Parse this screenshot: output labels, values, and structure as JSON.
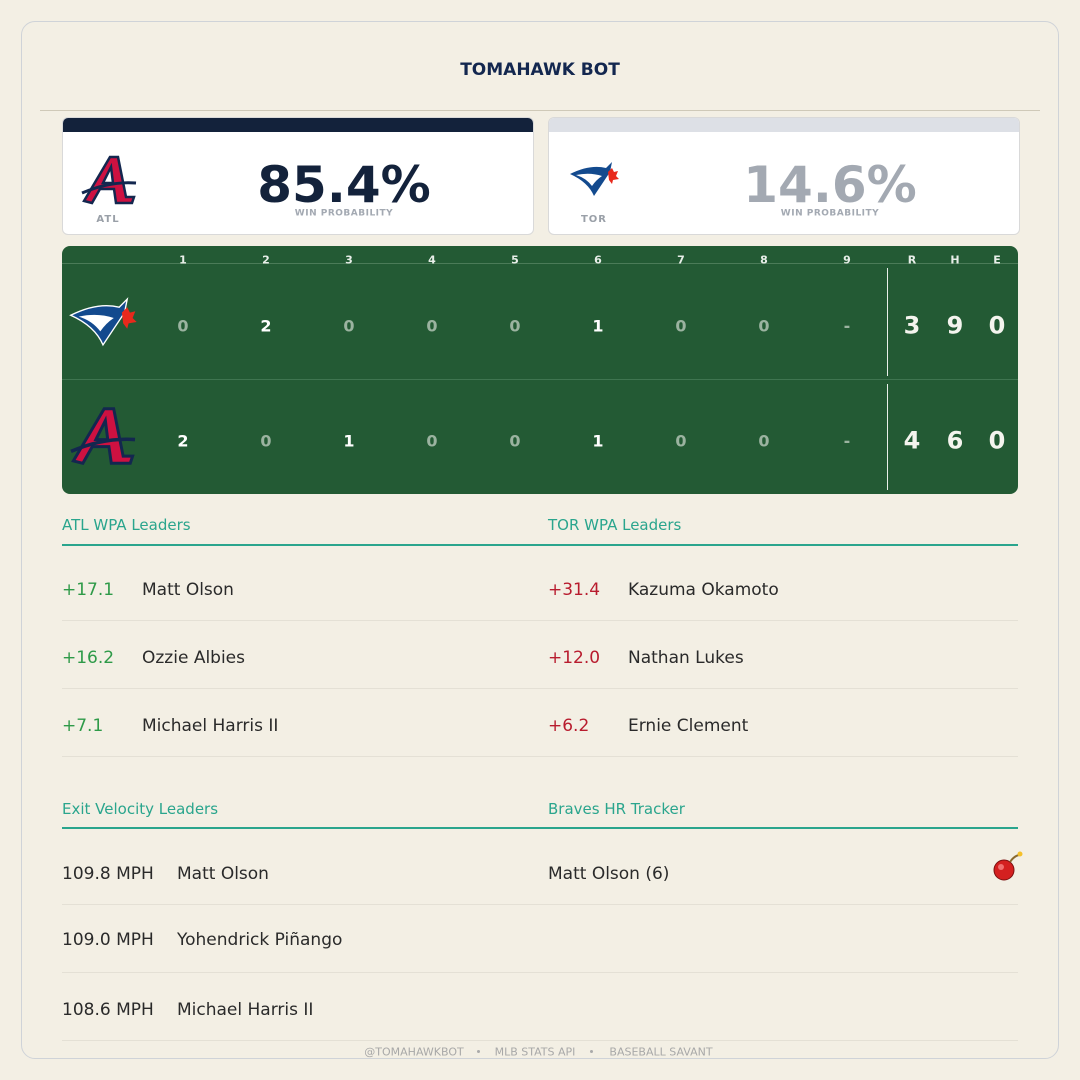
{
  "header": {
    "title": "TOMAHAWK BOT"
  },
  "win_probability": [
    {
      "team": "ATL",
      "value": "85.4%",
      "label": "WIN PROBABILITY"
    },
    {
      "team": "TOR",
      "value": "14.6%",
      "label": "WIN PROBABILITY"
    }
  ],
  "linescore": {
    "innings": [
      1,
      2,
      3,
      4,
      5,
      6,
      7,
      8,
      9
    ],
    "totals_header": [
      "R",
      "H",
      "E"
    ],
    "rows": [
      {
        "innings": [
          0,
          2,
          0,
          0,
          0,
          1,
          0,
          0,
          "-"
        ],
        "totals": [
          3,
          9,
          0
        ]
      },
      {
        "innings": [
          2,
          0,
          1,
          0,
          0,
          1,
          0,
          0,
          "-"
        ],
        "totals": [
          4,
          6,
          0
        ]
      }
    ]
  },
  "sections": [
    {
      "title": "ATL WPA Leaders",
      "rows": [
        {
          "value": "+17.1",
          "name": "Matt Olson"
        },
        {
          "value": "+16.2",
          "name": "Ozzie Albies"
        },
        {
          "value": "+7.1",
          "name": "Michael Harris II"
        }
      ]
    },
    {
      "title": "TOR WPA Leaders",
      "rows": [
        {
          "value": "+31.4",
          "name": "Kazuma Okamoto"
        },
        {
          "value": "+12.0",
          "name": "Nathan Lukes"
        },
        {
          "value": "+6.2",
          "name": "Ernie Clement"
        }
      ]
    },
    {
      "title": "Exit Velocity Leaders",
      "rows": [
        {
          "value": "109.8 MPH",
          "name": "Matt Olson"
        },
        {
          "value": "109.0 MPH",
          "name": "Yohendrick Piñango"
        },
        {
          "value": "108.6 MPH",
          "name": "Michael Harris II"
        }
      ]
    },
    {
      "title": "Braves HR Tracker",
      "rows": [
        {
          "name": "Matt Olson (6)"
        }
      ]
    }
  ],
  "footer": [
    "@TOMAHAWKBOT",
    "MLB STATS API",
    "BASEBALL SAVANT"
  ]
}
